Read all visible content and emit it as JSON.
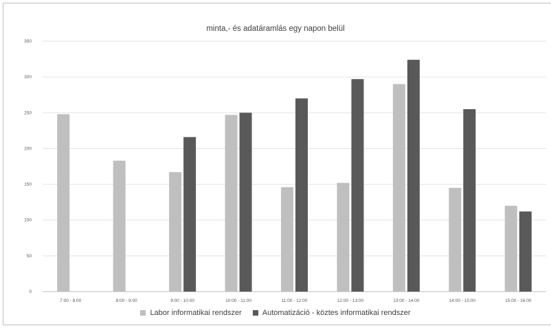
{
  "chart_data": {
    "type": "bar",
    "title": "minta,- és adatáramlás egy napon belül",
    "categories": [
      "7:00 - 8:00",
      "8:00 - 9:00",
      "9:00 - 10:00",
      "10:00 - 11:00",
      "11:00 - 12:00",
      "12:00 - 13:00",
      "13:00 - 14:00",
      "14:00 - 15:00",
      "15:00 - 16:00"
    ],
    "series": [
      {
        "name": "Labor informatikai rendszer",
        "color": "#bfbfbf",
        "values": [
          248,
          183,
          167,
          247,
          146,
          152,
          290,
          145,
          120
        ]
      },
      {
        "name": "Automatizáció - köztes informatikai rendszer",
        "color": "#595959",
        "values": [
          null,
          null,
          216,
          250,
          270,
          297,
          324,
          255,
          112
        ]
      }
    ],
    "ylim": [
      0,
      350
    ],
    "yticks": [
      0,
      50,
      100,
      150,
      200,
      250,
      300,
      350
    ],
    "grid": true,
    "legend_position": "bottom"
  }
}
